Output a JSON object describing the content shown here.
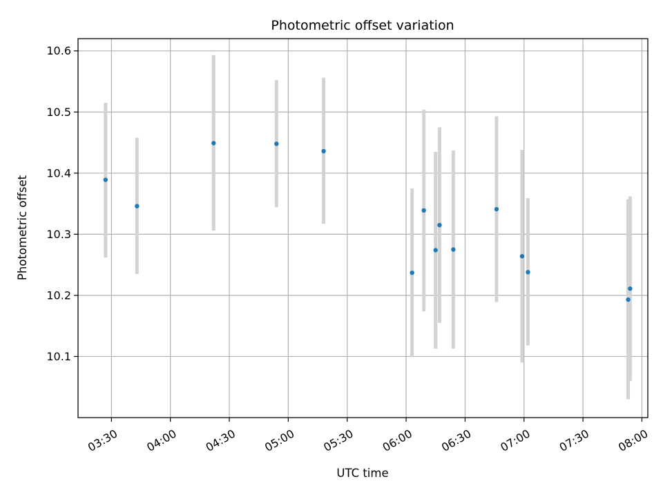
{
  "chart_data": {
    "type": "scatter",
    "title": "Photometric offset variation",
    "xlabel": "UTC time",
    "ylabel": "Photometric offset",
    "xlim": [
      "03:13",
      "08:03"
    ],
    "ylim": [
      10.0,
      10.62
    ],
    "grid": true,
    "x_ticks": [
      "03:30",
      "04:00",
      "04:30",
      "05:00",
      "05:30",
      "06:00",
      "06:30",
      "07:00",
      "07:30",
      "08:00"
    ],
    "y_ticks": [
      10.1,
      10.2,
      10.3,
      10.4,
      10.5,
      10.6
    ],
    "points": [
      {
        "x": "03:27",
        "y": 10.389,
        "y_low": 10.262,
        "y_high": 10.515
      },
      {
        "x": "03:43",
        "y": 10.346,
        "y_low": 10.235,
        "y_high": 10.458
      },
      {
        "x": "04:22",
        "y": 10.449,
        "y_low": 10.306,
        "y_high": 10.593
      },
      {
        "x": "04:54",
        "y": 10.448,
        "y_low": 10.344,
        "y_high": 10.552
      },
      {
        "x": "05:18",
        "y": 10.436,
        "y_low": 10.317,
        "y_high": 10.556
      },
      {
        "x": "06:03",
        "y": 10.237,
        "y_low": 10.099,
        "y_high": 10.375
      },
      {
        "x": "06:09",
        "y": 10.339,
        "y_low": 10.174,
        "y_high": 10.504
      },
      {
        "x": "06:15",
        "y": 10.274,
        "y_low": 10.113,
        "y_high": 10.435
      },
      {
        "x": "06:17",
        "y": 10.315,
        "y_low": 10.155,
        "y_high": 10.475
      },
      {
        "x": "06:24",
        "y": 10.275,
        "y_low": 10.113,
        "y_high": 10.437
      },
      {
        "x": "06:46",
        "y": 10.341,
        "y_low": 10.189,
        "y_high": 10.493
      },
      {
        "x": "06:59",
        "y": 10.264,
        "y_low": 10.09,
        "y_high": 10.438
      },
      {
        "x": "07:02",
        "y": 10.238,
        "y_low": 10.118,
        "y_high": 10.359
      },
      {
        "x": "07:53",
        "y": 10.193,
        "y_low": 10.03,
        "y_high": 10.357
      },
      {
        "x": "07:54",
        "y": 10.211,
        "y_low": 10.06,
        "y_high": 10.362
      }
    ],
    "colors": {
      "point": "#1f77b4",
      "errorbar": "#d3d3d3",
      "grid": "#b0b0b0"
    }
  }
}
